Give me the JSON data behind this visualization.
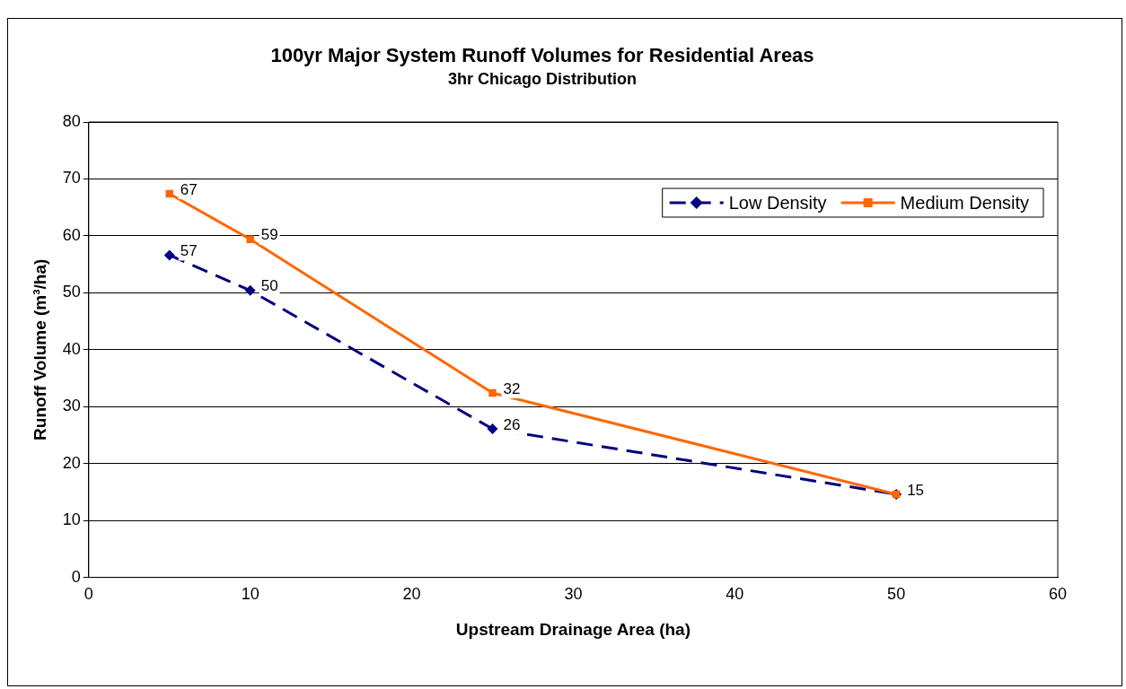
{
  "chart_data": {
    "type": "line",
    "title": "100yr Major System Runoff Volumes for Residential Areas",
    "subtitle": "3hr Chicago Distribution",
    "xlabel": "Upstream Drainage Area (ha)",
    "ylabel": "Runoff Volume (m³/ha)",
    "x": [
      5,
      10,
      25,
      50
    ],
    "series": [
      {
        "name": "Low Density",
        "color": "#000080",
        "marker": "diamond",
        "line_style": "dashed",
        "values": [
          56.6,
          50.4,
          26.1,
          14.6
        ],
        "value_labels": [
          "57",
          "50",
          "26",
          "15"
        ]
      },
      {
        "name": "Medium Density",
        "color": "#ff6600",
        "marker": "square",
        "line_style": "solid",
        "values": [
          67.4,
          59.4,
          32.4,
          14.6
        ],
        "value_labels": [
          "67",
          "59",
          "32",
          null
        ]
      }
    ],
    "xlim": [
      0,
      60
    ],
    "xticks": [
      0,
      10,
      20,
      30,
      40,
      50,
      60
    ],
    "ylim": [
      0,
      80
    ],
    "yticks": [
      0,
      10,
      20,
      30,
      40,
      50,
      60,
      70,
      80
    ],
    "grid": "y",
    "legend": "top right"
  }
}
